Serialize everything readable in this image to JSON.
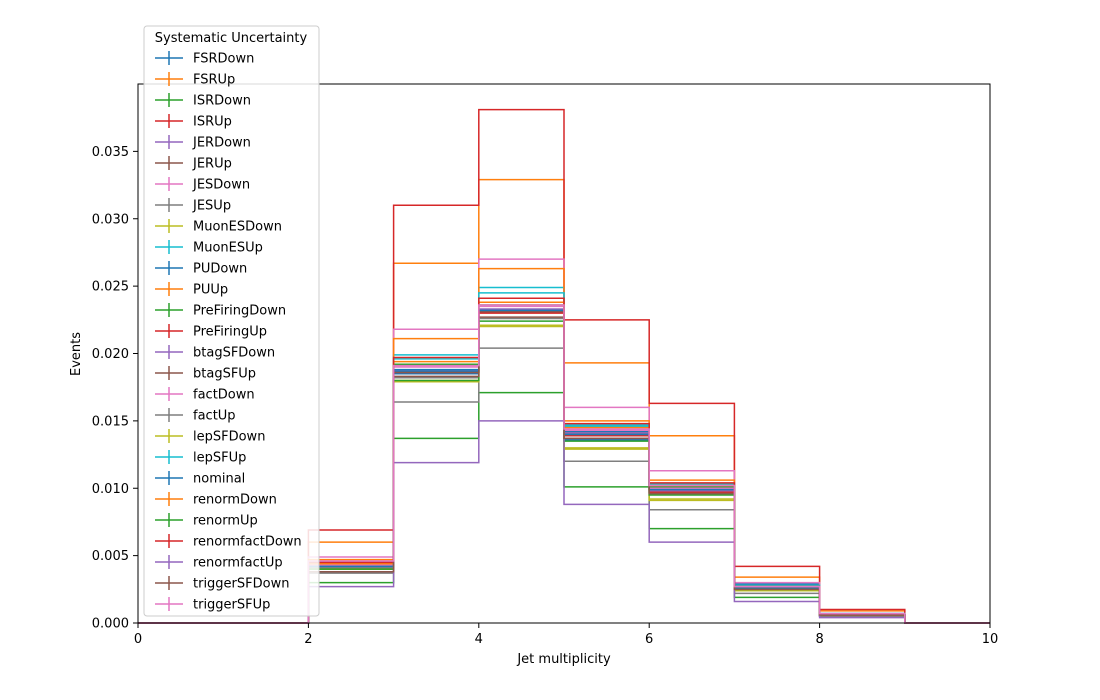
{
  "chart_data": {
    "type": "line",
    "drawstyle": "step",
    "xlabel": "Jet multiplicity",
    "ylabel": "Events",
    "xlim": [
      0,
      10
    ],
    "ylim": [
      0,
      0.04
    ],
    "xticks": [
      "0",
      "2",
      "4",
      "6",
      "8",
      "10"
    ],
    "yticks": [
      "0.000",
      "0.005",
      "0.010",
      "0.015",
      "0.020",
      "0.025",
      "0.030",
      "0.035"
    ],
    "grid": false,
    "legend": {
      "title": "Systematic Uncertainty",
      "placement": "top-left, outside above plot"
    },
    "bin_edges": [
      0,
      1,
      2,
      3,
      4,
      5,
      6,
      7,
      8,
      9,
      10
    ],
    "series": [
      {
        "name": "FSRDown",
        "color": "#1f77b4",
        "values": [
          0,
          0,
          0.0043,
          0.0188,
          0.0232,
          0.0142,
          0.01,
          0.0029,
          0.0007,
          0
        ]
      },
      {
        "name": "FSRUp",
        "color": "#ff7f0e",
        "values": [
          0,
          0,
          0.006,
          0.0267,
          0.0329,
          0.0193,
          0.0139,
          0.0034,
          0.0009,
          0
        ]
      },
      {
        "name": "ISRDown",
        "color": "#2ca02c",
        "values": [
          0,
          0,
          0.003,
          0.0137,
          0.0171,
          0.0101,
          0.007,
          0.0019,
          0.0005,
          0
        ]
      },
      {
        "name": "ISRUp",
        "color": "#d62728",
        "values": [
          0,
          0,
          0.0069,
          0.031,
          0.0381,
          0.0225,
          0.0163,
          0.0042,
          0.001,
          0
        ]
      },
      {
        "name": "JERDown",
        "color": "#9467bd",
        "values": [
          0,
          0,
          0.0042,
          0.0187,
          0.0233,
          0.0139,
          0.0098,
          0.0026,
          0.0006,
          0
        ]
      },
      {
        "name": "JERUp",
        "color": "#8c564b",
        "values": [
          0,
          0,
          0.0042,
          0.0186,
          0.0231,
          0.0141,
          0.0101,
          0.0027,
          0.0006,
          0
        ]
      },
      {
        "name": "JESDown",
        "color": "#e377c2",
        "values": [
          0,
          0,
          0.0049,
          0.0218,
          0.027,
          0.016,
          0.0113,
          0.003,
          0.0007,
          0
        ]
      },
      {
        "name": "JESUp",
        "color": "#7f7f7f",
        "values": [
          0,
          0,
          0.0037,
          0.0164,
          0.0204,
          0.012,
          0.0084,
          0.0022,
          0.0005,
          0
        ]
      },
      {
        "name": "MuonESDown",
        "color": "#bcbd22",
        "values": [
          0,
          0,
          0.004,
          0.018,
          0.022,
          0.013,
          0.0092,
          0.0024,
          0.0006,
          0
        ]
      },
      {
        "name": "MuonESUp",
        "color": "#17becf",
        "values": [
          0,
          0,
          0.0045,
          0.0199,
          0.0249,
          0.0147,
          0.0103,
          0.0028,
          0.0007,
          0
        ]
      },
      {
        "name": "PUDown",
        "color": "#1f77b4",
        "values": [
          0,
          0,
          0.0042,
          0.0185,
          0.0232,
          0.0136,
          0.0097,
          0.0027,
          0.0006,
          0
        ]
      },
      {
        "name": "PUUp",
        "color": "#ff7f0e",
        "values": [
          0,
          0,
          0.0047,
          0.0211,
          0.0263,
          0.015,
          0.0106,
          0.0027,
          0.0006,
          0
        ]
      },
      {
        "name": "PreFiringDown",
        "color": "#2ca02c",
        "values": [
          0,
          0,
          0.0043,
          0.0192,
          0.0236,
          0.0143,
          0.0101,
          0.0026,
          0.0006,
          0
        ]
      },
      {
        "name": "PreFiringUp",
        "color": "#d62728",
        "values": [
          0,
          0,
          0.0042,
          0.0186,
          0.023,
          0.0139,
          0.0097,
          0.0025,
          0.0006,
          0
        ]
      },
      {
        "name": "btagSFDown",
        "color": "#9467bd",
        "values": [
          0,
          0,
          0.0041,
          0.0187,
          0.0232,
          0.0141,
          0.0099,
          0.0025,
          0.0006,
          0
        ]
      },
      {
        "name": "btagSFUp",
        "color": "#8c564b",
        "values": [
          0,
          0,
          0.0041,
          0.0186,
          0.0231,
          0.014,
          0.0099,
          0.0025,
          0.0006,
          0
        ]
      },
      {
        "name": "factDown",
        "color": "#e377c2",
        "values": [
          0,
          0,
          0.0043,
          0.019,
          0.0235,
          0.0143,
          0.01,
          0.0026,
          0.0006,
          0
        ]
      },
      {
        "name": "factUp",
        "color": "#7f7f7f",
        "values": [
          0,
          0,
          0.0041,
          0.0182,
          0.0226,
          0.0137,
          0.0096,
          0.0025,
          0.0006,
          0
        ]
      },
      {
        "name": "lepSFDown",
        "color": "#bcbd22",
        "values": [
          0,
          0,
          0.004,
          0.0179,
          0.0221,
          0.0129,
          0.0091,
          0.0024,
          0.0006,
          0
        ]
      },
      {
        "name": "lepSFUp",
        "color": "#17becf",
        "values": [
          0,
          0,
          0.0044,
          0.0196,
          0.0245,
          0.0146,
          0.0103,
          0.0027,
          0.0007,
          0
        ]
      },
      {
        "name": "nominal",
        "color": "#1f77b4",
        "values": [
          0,
          0,
          0.0042,
          0.0187,
          0.0232,
          0.014,
          0.0099,
          0.0026,
          0.0006,
          0
        ]
      },
      {
        "name": "renormDown",
        "color": "#ff7f0e",
        "values": [
          0,
          0,
          0.0044,
          0.0194,
          0.0238,
          0.0145,
          0.0102,
          0.0027,
          0.0006,
          0
        ]
      },
      {
        "name": "renormUp",
        "color": "#2ca02c",
        "values": [
          0,
          0,
          0.004,
          0.018,
          0.0224,
          0.0135,
          0.0095,
          0.0025,
          0.0006,
          0
        ]
      },
      {
        "name": "renormfactDown",
        "color": "#d62728",
        "values": [
          0,
          0,
          0.0045,
          0.0197,
          0.0241,
          0.0148,
          0.0104,
          0.0027,
          0.0006,
          0
        ]
      },
      {
        "name": "renormfactUp",
        "color": "#9467bd",
        "values": [
          0,
          0,
          0.0027,
          0.0119,
          0.015,
          0.0088,
          0.006,
          0.0016,
          0.0004,
          0
        ]
      },
      {
        "name": "triggerSFDown",
        "color": "#8c564b",
        "values": [
          0,
          0,
          0.0038,
          0.0183,
          0.0227,
          0.0137,
          0.0096,
          0.0025,
          0.0006,
          0
        ]
      },
      {
        "name": "triggerSFUp",
        "color": "#e377c2",
        "values": [
          0,
          0,
          0.0046,
          0.0191,
          0.0236,
          0.0144,
          0.0102,
          0.0027,
          0.0007,
          0
        ]
      }
    ]
  }
}
